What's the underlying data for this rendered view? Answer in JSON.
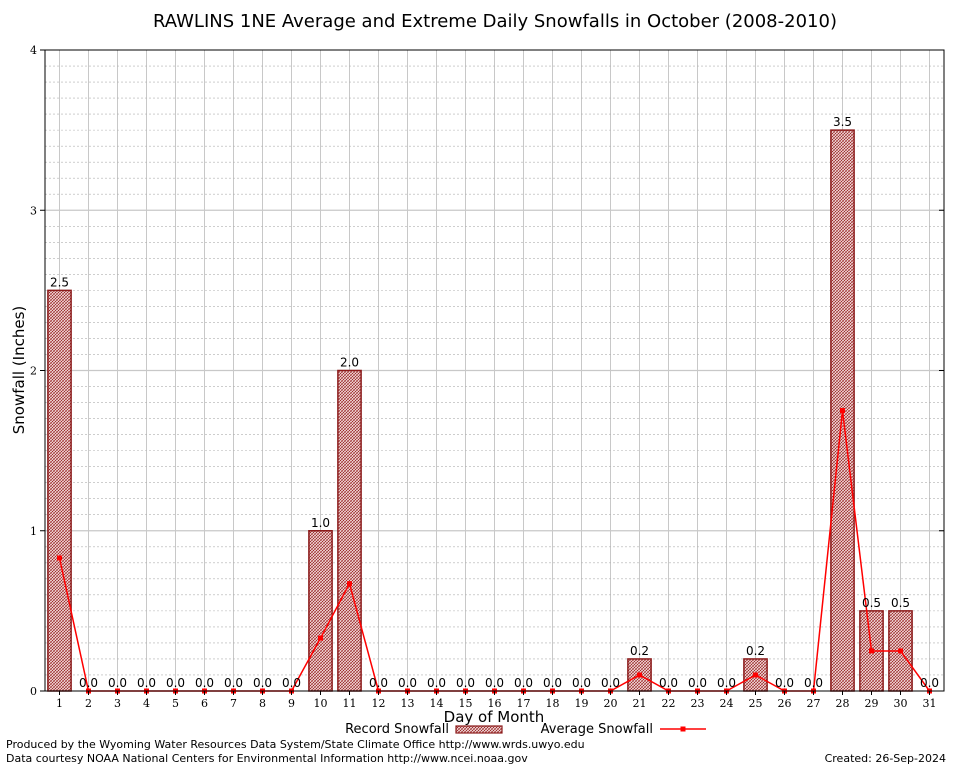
{
  "chart_data": {
    "type": "bar",
    "title": "RAWLINS 1NE Average and Extreme Daily Snowfalls in October (2008-2010)",
    "xlabel": "Day of Month",
    "ylabel": "Snowfall (Inches)",
    "ylim": [
      0,
      4
    ],
    "yticks": [
      "0",
      "1",
      "2",
      "3",
      "4"
    ],
    "grid": true,
    "legend_position": "bottom",
    "categories": [
      "1",
      "2",
      "3",
      "4",
      "5",
      "6",
      "7",
      "8",
      "9",
      "10",
      "11",
      "12",
      "13",
      "14",
      "15",
      "16",
      "17",
      "18",
      "19",
      "20",
      "21",
      "22",
      "23",
      "24",
      "25",
      "26",
      "27",
      "28",
      "29",
      "30",
      "31"
    ],
    "series": [
      {
        "name": "Record Snowfall",
        "style": "bar",
        "color": "#8b1a1a",
        "values": [
          2.5,
          0,
          0,
          0,
          0,
          0,
          0,
          0,
          0,
          1.0,
          2.0,
          0,
          0,
          0,
          0,
          0,
          0,
          0,
          0,
          0,
          0.2,
          0,
          0,
          0,
          0.2,
          0,
          0,
          3.5,
          0.5,
          0.5,
          0
        ],
        "labels": [
          "2.5",
          "0.0",
          "0.0",
          "0.0",
          "0.0",
          "0.0",
          "0.0",
          "0.0",
          "0.0",
          "1.0",
          "2.0",
          "0.0",
          "0.0",
          "0.0",
          "0.0",
          "0.0",
          "0.0",
          "0.0",
          "0.0",
          "0.0",
          "0.2",
          "0.0",
          "0.0",
          "0.0",
          "0.2",
          "0.0",
          "0.0",
          "3.5",
          "0.5",
          "0.5",
          "0.0"
        ]
      },
      {
        "name": "Average Snowfall",
        "style": "line",
        "color": "#ff0000",
        "values": [
          0.83,
          0,
          0,
          0,
          0,
          0,
          0,
          0,
          0,
          0.33,
          0.67,
          0,
          0,
          0,
          0,
          0,
          0,
          0,
          0,
          0,
          0.1,
          0,
          0,
          0,
          0.1,
          0,
          0,
          1.75,
          0.25,
          0.25,
          0
        ]
      }
    ]
  },
  "footer": {
    "produced_by": "Produced by the Wyoming Water Resources Data System/State Climate Office http://www.wrds.uwyo.edu",
    "data_courtesy": "Data courtesy NOAA National Centers for Environmental Information http://www.ncei.noaa.gov",
    "created": "Created: 26-Sep-2024"
  }
}
